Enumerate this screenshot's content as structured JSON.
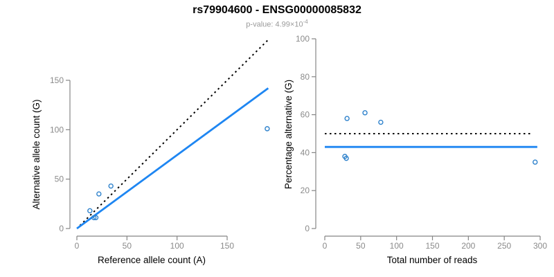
{
  "header": {
    "title": "rs79904600 - ENSG00000085832",
    "subtitle_base": "p-value: 4.99×10",
    "subtitle_exponent": "-4"
  },
  "colors": {
    "title": "#000000",
    "subtitle": "#9a9a9a",
    "axis": "#858585",
    "tick_label": "#8a8a8a",
    "axis_title": "#000000",
    "point_stroke": "#2e82cc",
    "fit_line": "#1e86f2",
    "identity_line": "#000000"
  },
  "chart_data": [
    {
      "type": "scatter",
      "name": "allele-counts",
      "title": "",
      "xlabel": "Reference allele count (A)",
      "ylabel": "Alternative allele count (G)",
      "xticks": [
        0,
        50,
        100,
        150
      ],
      "yticks": [
        0,
        50,
        100,
        150
      ],
      "xlim": [
        0,
        195
      ],
      "ylim": [
        0,
        195
      ],
      "grid": false,
      "points": [
        [
          13,
          18
        ],
        [
          17,
          11
        ],
        [
          19,
          11
        ],
        [
          22,
          35
        ],
        [
          34,
          43
        ],
        [
          190,
          101
        ]
      ],
      "lines": [
        {
          "kind": "identity-line",
          "style": "dotted",
          "color": "identity_line",
          "x1": 3,
          "y1": 3,
          "x2": 192,
          "y2": 192
        },
        {
          "kind": "fit-line",
          "style": "solid",
          "color": "fit_line",
          "x1": 0,
          "y1": 0,
          "x2": 191,
          "y2": 142
        }
      ]
    },
    {
      "type": "scatter",
      "name": "percentage-vs-depth",
      "title": "",
      "xlabel": "Total number of reads",
      "ylabel": "Percentage alternative (G)",
      "xticks": [
        0,
        50,
        100,
        150,
        200,
        250,
        300
      ],
      "yticks": [
        0,
        20,
        40,
        60,
        80,
        100
      ],
      "xlim": [
        0,
        300
      ],
      "ylim": [
        0,
        100
      ],
      "grid": false,
      "points": [
        [
          28,
          38
        ],
        [
          30,
          37
        ],
        [
          31,
          58
        ],
        [
          56,
          61
        ],
        [
          78,
          56
        ],
        [
          293,
          35
        ]
      ],
      "lines": [
        {
          "kind": "expected-50pct-line",
          "style": "dotted",
          "color": "identity_line",
          "x1": 0,
          "y1": 50,
          "x2": 290,
          "y2": 50
        },
        {
          "kind": "observed-mean-line",
          "style": "solid",
          "color": "fit_line",
          "x1": 0,
          "y1": 43,
          "x2": 296,
          "y2": 43
        }
      ]
    }
  ]
}
